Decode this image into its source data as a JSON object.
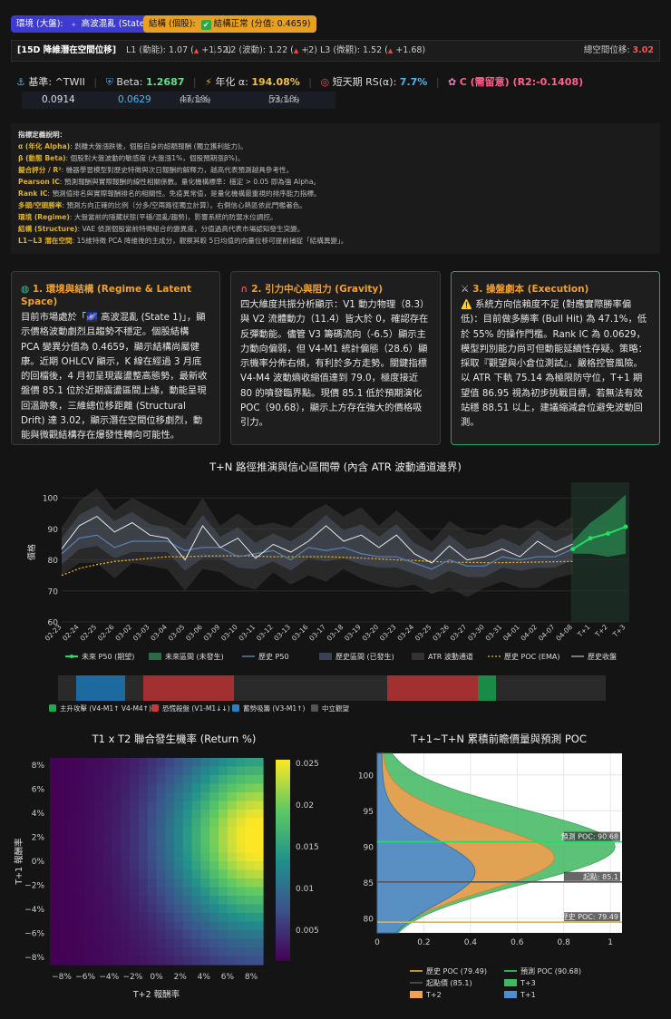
{
  "badges": {
    "env_label": "環境 (大盤):",
    "env_value": "高波混亂 (State 1)",
    "env_icon": "sparkle-icon",
    "struct_label": "結構 (個股):",
    "struct_value": "結構正常 (分值: 0.4659)",
    "struct_icon": "check-icon"
  },
  "latent": {
    "title": "[15D 降維潛在空間位移]",
    "l1": "L1 (動能): 1.07 (",
    "l1_delta": "+1.52)",
    "l2": "L2 (波動): 1.22 (",
    "l2_delta": "+2)",
    "l3": "L3 (微觀): 1.52 (",
    "l3_delta": "+1.68)",
    "total_label": "總空間位移:",
    "total_value": "3.02"
  },
  "metrics": {
    "base_label": "基準: ^TWII",
    "beta_label": "Beta:",
    "beta_value": "1.2687",
    "alpha_label": "年化 α:",
    "alpha_value": "194.08%",
    "rs_label": "短天期 RS(α):",
    "rs_value": "7.7%",
    "grade_label": "C (需留意) (R2:-0.1408)",
    "row2_a": "0.0914",
    "row2_b": "0.0629",
    "row2_c": "47.1%",
    "row2_c_sub": "(89/189)",
    "row2_d": "53.1%",
    "row2_d_sub": "(78/147)"
  },
  "definitions": {
    "title": "指標定義說明：",
    "items": [
      {
        "k": "α (年化 Alpha)",
        "v": ": 剝離大盤漲跌後，個股自身的超額報酬 (獨立獲利能力)。"
      },
      {
        "k": "β (動態 Beta)",
        "v": ": 個股對大盤波動的敏感度 (大盤漲1%，個股預期漲β%)。"
      },
      {
        "k": "擬合評分 / R²",
        "v": ": 機器學習模型對歷史特徵與次日報酬的解釋力，越高代表預測越具參考性。"
      },
      {
        "k": "Pearson IC",
        "v": ": 預測報酬與實際報酬的線性相關係數。量化機構標準：穩定 > 0.05 即為強 Alpha。"
      },
      {
        "k": "Rank IC",
        "v": ": 預測值排名與實際報酬排名的相關性。免疫異常值，是量化機構最重視的排序能力指標。"
      },
      {
        "k": "多頭/空頭勝率",
        "v": ": 預測方向正確的比例（分多/空兩路徑獨立計算）。右側信心熱區依此門檻著色。"
      },
      {
        "k": "環境 (Regime)",
        "v": ": 大盤當前的隱藏狀態(平穩/混亂/趨勢)，影響系統的防禦水位調控。"
      },
      {
        "k": "結構 (Structure)",
        "v": ": VAE 偵測個股當前特徵組合的變異度，分值過高代表市場認知發生突變。"
      },
      {
        "k": "L1~L3 潛在空間",
        "v": ": 15維特徵 PCA 降維後的主成分，觀察其較 5日均值的向量位移可提前捕捉「結構異變」。"
      }
    ]
  },
  "cards": [
    {
      "icon": "globe-icon",
      "title": "1. 環境與結構 (Regime & Latent Space)",
      "body": "目前市場處於「🌌 高波混亂 (State 1)」，顯示價格波動劇烈且趨勢不穩定。個股結構 PCA 變異分值為 0.4659，顯示結構尚屬健康。近期 OHLCV 顯示，K 線在經過 3 月底的回檔後，4 月初呈現震盪整高態勢，最新收盤價 85.1 位於近期震盪區間上緣，動能呈現回溫跡象，三維總位移距離 (Structural Drift) 達 3.02，顯示潛在空間位移劇烈，動能與微觀結構存在爆發性轉向可能性。"
    },
    {
      "icon": "magnet-icon",
      "title": "2. 引力中心與阻力 (Gravity)",
      "body": "四大維度共振分析顯示：V1 動力物理（8.3）與 V2 流體動力（11.4）皆大於 0，確認存在反彈動能。儘管 V3 籌碼流向（-6.5）顯示主力動向偏弱，但 V4-M1 統計偏態（28.6）顯示機率分佈右傾，有利於多方走勢。關鍵指標 V4-M4 波動熵收縮值達到 79.0，極度接近 80 的噴發臨界點。現價 85.1 低於預期演化 POC（90.68），顯示上方存在強大的價格吸引力。"
    },
    {
      "icon": "swords-icon",
      "title": "3. 操盤劇本 (Execution)",
      "body": "⚠️ 系統方向信賴度不足 (對應實際勝率偏低)：目前做多勝率 (Bull Hit) 為 47.1%，低於 55% 的操作門檻。Rank IC 為 0.0629，模型判別能力尚可但動能延續性存疑。策略：採取『觀望與小倉位測試』，嚴格控管風險。以 ATR 下軌 75.14 為極限防守位，T+1 期望值 86.95 視為初步挑戰目標，若無法有效站穩 88.51 以上，建議縮減倉位避免波動回測。"
    }
  ],
  "main_chart_title": "T+N 路徑推演與信心區間帶 (內含 ATR 波動通道邊界)",
  "chart_data": [
    {
      "type": "line",
      "title": "T+N 路徑推演與信心區間帶 (內含 ATR 波動通道邊界)",
      "ylabel": "價格",
      "ylim": [
        60,
        105
      ],
      "yticks": [
        60,
        70,
        80,
        90,
        100
      ],
      "x": [
        "02-23",
        "02-24",
        "02-25",
        "02-26",
        "03-02",
        "03-03",
        "03-04",
        "03-05",
        "03-06",
        "03-09",
        "03-10",
        "03-11",
        "03-12",
        "03-13",
        "03-16",
        "03-17",
        "03-18",
        "03-19",
        "03-20",
        "03-23",
        "03-24",
        "03-25",
        "03-26",
        "03-27",
        "03-30",
        "03-31",
        "04-01",
        "04-02",
        "04-07",
        "04-08",
        "T+1",
        "T+2",
        "T+3"
      ],
      "series": [
        {
          "name": "歷史收盤",
          "values": [
            83.5,
            91,
            94,
            89,
            92,
            88,
            87,
            80,
            91,
            84,
            87,
            80.5,
            85,
            82.5,
            86,
            91,
            86,
            88,
            84,
            88,
            82,
            79,
            84.5,
            80,
            81,
            83.5,
            81,
            86,
            82.5,
            85.1,
            null,
            null,
            null
          ]
        },
        {
          "name": "歷史 P50",
          "values": [
            82,
            87,
            88,
            84,
            86,
            86,
            86,
            83,
            84,
            84,
            81,
            82,
            83,
            80,
            84,
            83,
            84,
            82,
            81,
            81,
            79,
            77,
            80,
            78,
            78,
            81,
            80,
            81,
            81,
            83.5,
            null,
            null,
            null
          ]
        },
        {
          "name": "歷史 POC (EMA)",
          "values": [
            75,
            77.2,
            78.5,
            79.5,
            80,
            80.5,
            81,
            81,
            81.2,
            81.3,
            81.3,
            81.2,
            81,
            81,
            81,
            81,
            80.8,
            80.6,
            80.3,
            80,
            79.8,
            79.5,
            79.3,
            79.2,
            79.1,
            79.1,
            79.2,
            79.3,
            79.4,
            79.49,
            null,
            null,
            null
          ]
        },
        {
          "name": "未來 P50 (期望)",
          "values": [
            null,
            null,
            null,
            null,
            null,
            null,
            null,
            null,
            null,
            null,
            null,
            null,
            null,
            null,
            null,
            null,
            null,
            null,
            null,
            null,
            null,
            null,
            null,
            null,
            null,
            null,
            null,
            null,
            null,
            83.5,
            86.95,
            88.5,
            90.68
          ]
        }
      ]
    },
    {
      "type": "heatmap",
      "title": "T1 x T2 聯合發生機率 (Return %)",
      "xlabel": "T+2 報酬率",
      "ylabel": "T+1 報酬率",
      "x_ticks": [
        "−8%",
        "−6%",
        "−4%",
        "−2%",
        "0%",
        "2%",
        "4%",
        "6%",
        "8%"
      ],
      "y_ticks": [
        "8%",
        "6%",
        "4%",
        "2%",
        "0%",
        "−2%",
        "−4%",
        "−6%",
        "−8%"
      ],
      "colorbar_ticks": [
        "0.025",
        "0.02",
        "0.015",
        "0.01",
        "0.005"
      ],
      "zlim": [
        0.001,
        0.026
      ]
    },
    {
      "type": "area",
      "title": "T+1~T+N 累積前瞻價量與預測 POC",
      "ylim": [
        78,
        103
      ],
      "xlim": [
        0,
        1.05
      ],
      "yticks": [
        80,
        85,
        90,
        95,
        100
      ],
      "xticks": [
        "0",
        "0.2",
        "0.4",
        "0.6",
        "0.8",
        "1"
      ],
      "series": [
        {
          "name": "T+1",
          "color": "#4a8fd0"
        },
        {
          "name": "T+2",
          "color": "#f0a050"
        },
        {
          "name": "T+3",
          "color": "#40b860"
        }
      ],
      "lines": [
        {
          "name": "歷史 POC (79.49)",
          "value": 79.49,
          "label": "歷史 POC: 79.49"
        },
        {
          "name": "預測 POC (90.68)",
          "value": 90.68,
          "label": "預測 POC: 90.68"
        },
        {
          "name": "起點價 (85.1)",
          "value": 85.1,
          "label": "起點: 85.1"
        }
      ]
    }
  ],
  "main_legend": [
    "未來 P50 (期望)",
    "未來區間 (未發生)",
    "歷史 P50",
    "歷史區間 (已發生)",
    "ATR 波動通道",
    "歷史 POC (EMA)",
    "歷史收盤"
  ],
  "regime_legend": [
    "主升攻擊 (V4-M1↑ V4-M4↑)",
    "恐慌殺盤 (V1-M1↓↓)",
    "蓄勢吸籌 (V3-M1↑)",
    "中立觀望"
  ],
  "heatmap_title": "T1 x T2 聯合發生機率 (Return %)",
  "profile_title": "T+1~T+N 累積前瞻價量與預測 POC",
  "profile_legend": [
    "歷史 POC (79.49)",
    "預測 POC (90.68)",
    "起點價 (85.1)",
    "T+3",
    "T+2",
    "T+1"
  ],
  "colors": {
    "env_badge": "#3a3ae0",
    "struct_badge": "#e8a020",
    "teal": "#26a69a",
    "accent": "#f0a030"
  }
}
